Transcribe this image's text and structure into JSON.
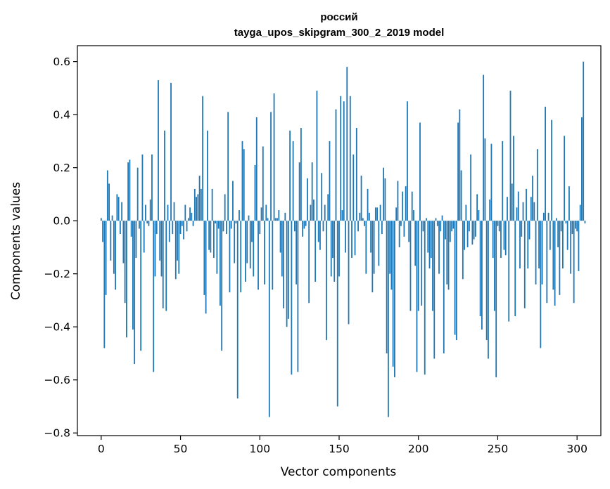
{
  "chart_data": {
    "type": "bar",
    "title": "россий",
    "subtitle": "tayga_upos_skipgram_300_2_2019 model",
    "xlabel": "Vector components",
    "ylabel": "Components values",
    "xlim": [
      -15,
      315
    ],
    "ylim": [
      -0.81,
      0.66
    ],
    "xticks": [
      0,
      50,
      100,
      150,
      200,
      250,
      300
    ],
    "yticks": [
      -0.8,
      -0.6,
      -0.4,
      -0.2,
      0.0,
      0.2,
      0.4,
      0.6
    ],
    "ytick_labels": [
      "−0.8",
      "−0.6",
      "−0.4",
      "−0.2",
      "0.0",
      "0.2",
      "0.4",
      "0.6"
    ],
    "xtick_labels": [
      "0",
      "50",
      "100",
      "150",
      "200",
      "250",
      "300"
    ],
    "bar_color": "#1f77b4",
    "grid": false,
    "values": [
      0.01,
      -0.08,
      -0.48,
      -0.28,
      0.19,
      0.14,
      -0.15,
      0.02,
      -0.2,
      -0.26,
      0.1,
      0.09,
      -0.05,
      0.07,
      -0.16,
      -0.31,
      -0.44,
      0.22,
      0.23,
      -0.06,
      -0.41,
      -0.54,
      -0.14,
      0.2,
      -0.03,
      -0.49,
      0.25,
      -0.12,
      0.06,
      -0.01,
      -0.02,
      0.08,
      0.25,
      -0.57,
      -0.21,
      -0.05,
      0.53,
      -0.15,
      -0.21,
      -0.33,
      0.34,
      -0.34,
      0.06,
      -0.08,
      0.52,
      -0.05,
      0.07,
      -0.22,
      -0.15,
      -0.2,
      -0.05,
      -0.02,
      -0.07,
      0.06,
      -0.04,
      0.01,
      0.05,
      0.03,
      -0.02,
      0.12,
      0.09,
      0.1,
      0.17,
      0.12,
      0.47,
      -0.28,
      -0.35,
      0.34,
      -0.11,
      -0.12,
      0.12,
      -0.14,
      -0.01,
      -0.2,
      -0.03,
      -0.32,
      -0.49,
      -0.04,
      0.1,
      -0.05,
      0.41,
      -0.27,
      -0.03,
      0.15,
      -0.16,
      -0.01,
      -0.67,
      0.04,
      -0.27,
      0.3,
      0.27,
      -0.23,
      -0.16,
      0.02,
      -0.18,
      -0.08,
      -0.21,
      0.21,
      0.39,
      -0.26,
      -0.05,
      0.05,
      0.28,
      -0.24,
      0.06,
      0.01,
      -0.74,
      0.41,
      -0.26,
      0.48,
      0.01,
      0.01,
      0.04,
      -0.12,
      -0.21,
      -0.33,
      0.03,
      -0.4,
      -0.37,
      0.34,
      -0.58,
      0.3,
      -0.04,
      -0.24,
      -0.57,
      0.22,
      0.35,
      -0.06,
      -0.03,
      -0.02,
      0.16,
      -0.31,
      0.06,
      0.22,
      0.08,
      -0.23,
      0.49,
      -0.08,
      -0.11,
      0.18,
      -0.04,
      0.06,
      -0.45,
      0.1,
      0.3,
      -0.21,
      -0.14,
      -0.23,
      0.42,
      -0.7,
      -0.21,
      0.47,
      0.04,
      0.45,
      -0.12,
      0.58,
      -0.39,
      0.47,
      -0.14,
      0.25,
      -0.13,
      0.35,
      -0.04,
      0.03,
      0.17,
      0.01,
      -0.02,
      -0.2,
      0.12,
      0.03,
      -0.12,
      -0.27,
      -0.2,
      0.05,
      0.05,
      -0.17,
      0.06,
      -0.05,
      0.2,
      0.16,
      -0.5,
      -0.74,
      -0.2,
      -0.26,
      -0.55,
      -0.59,
      0.05,
      0.15,
      -0.1,
      -0.02,
      0.11,
      -0.06,
      0.13,
      0.45,
      -0.08,
      -0.34,
      0.11,
      0.04,
      -0.17,
      -0.57,
      -0.34,
      0.37,
      -0.32,
      -0.04,
      -0.58,
      0.01,
      -0.12,
      -0.18,
      -0.14,
      -0.34,
      -0.52,
      0.01,
      -0.02,
      -0.2,
      -0.04,
      0.02,
      -0.5,
      -0.07,
      -0.24,
      -0.26,
      -0.08,
      -0.04,
      -0.03,
      -0.43,
      -0.45,
      0.37,
      0.42,
      0.19,
      -0.22,
      -0.11,
      0.06,
      -0.1,
      -0.04,
      0.25,
      -0.09,
      -0.07,
      -0.06,
      0.1,
      0.04,
      -0.36,
      -0.41,
      0.55,
      0.31,
      -0.45,
      -0.52,
      0.08,
      0.29,
      -0.14,
      -0.34,
      -0.59,
      -0.02,
      -0.04,
      -0.14,
      0.3,
      -0.11,
      -0.13,
      0.09,
      -0.38,
      0.49,
      0.14,
      0.32,
      -0.36,
      0.05,
      0.11,
      -0.18,
      -0.06,
      0.07,
      -0.33,
      0.12,
      -0.18,
      -0.07,
      0.09,
      0.17,
      0.07,
      -0.24,
      0.27,
      -0.18,
      -0.48,
      -0.24,
      0.03,
      0.43,
      -0.31,
      0.03,
      -0.11,
      0.38,
      -0.26,
      -0.32,
      0.01,
      -0.1,
      -0.28,
      -0.04,
      -0.18,
      0.32,
      -0.01,
      -0.11,
      0.13,
      -0.2,
      -0.05,
      -0.31,
      -0.03,
      -0.04,
      -0.19,
      0.06,
      0.39,
      0.6,
      -0.01
    ]
  }
}
